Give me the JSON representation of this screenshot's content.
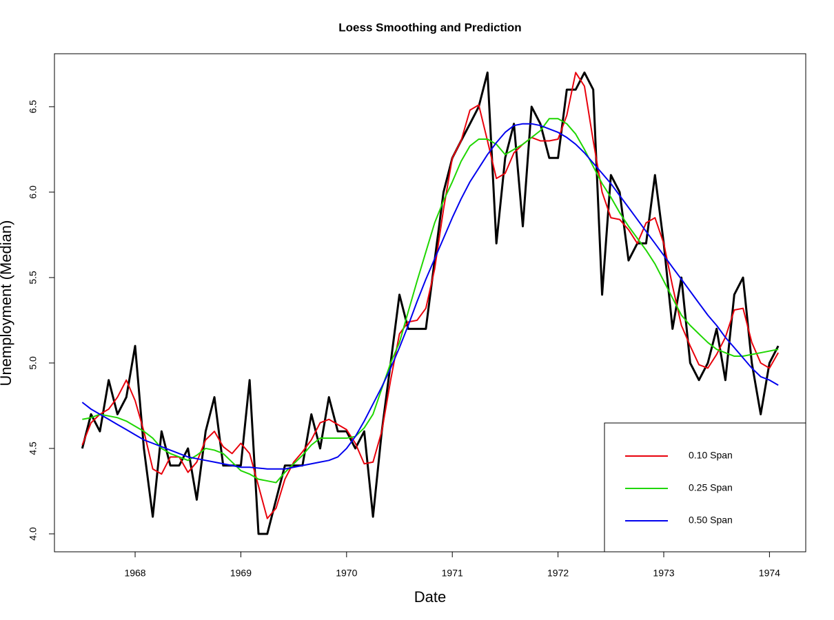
{
  "chart_data": {
    "type": "line",
    "title": "Loess Smoothing and Prediction",
    "x_label": "Date",
    "y_label": "Unemployment (Median)",
    "x": [
      1967.5,
      1967.583,
      1967.667,
      1967.75,
      1967.833,
      1967.917,
      1968,
      1968.083,
      1968.167,
      1968.25,
      1968.333,
      1968.417,
      1968.5,
      1968.583,
      1968.667,
      1968.75,
      1968.833,
      1968.917,
      1969,
      1969.083,
      1969.167,
      1969.25,
      1969.333,
      1969.417,
      1969.5,
      1969.583,
      1969.667,
      1969.75,
      1969.833,
      1969.917,
      1970,
      1970.083,
      1970.167,
      1970.25,
      1970.333,
      1970.417,
      1970.5,
      1970.583,
      1970.667,
      1970.75,
      1970.833,
      1970.917,
      1971,
      1971.083,
      1971.167,
      1971.25,
      1971.333,
      1971.417,
      1971.5,
      1971.583,
      1971.667,
      1971.75,
      1971.833,
      1971.917,
      1972,
      1972.083,
      1972.167,
      1972.25,
      1972.333,
      1972.417,
      1972.5,
      1972.583,
      1972.667,
      1972.75,
      1972.833,
      1972.917,
      1973,
      1973.083,
      1973.167,
      1973.25,
      1973.333,
      1973.417,
      1973.5,
      1973.583,
      1973.667,
      1973.75,
      1973.833,
      1973.917,
      1974,
      1974.083
    ],
    "series": [
      {
        "color": "#000000",
        "width": 3,
        "values": [
          4.5,
          4.7,
          4.6,
          4.9,
          4.7,
          4.8,
          5.1,
          4.5,
          4.1,
          4.6,
          4.4,
          4.4,
          4.5,
          4.2,
          4.6,
          4.8,
          4.4,
          4.4,
          4.4,
          4.9,
          4.0,
          4.0,
          4.2,
          4.4,
          4.4,
          4.4,
          4.7,
          4.5,
          4.8,
          4.6,
          4.6,
          4.5,
          4.6,
          4.1,
          4.6,
          5.0,
          5.4,
          5.2,
          5.2,
          5.2,
          5.6,
          6.0,
          6.2,
          6.3,
          6.4,
          6.5,
          6.7,
          5.7,
          6.2,
          6.4,
          5.8,
          6.5,
          6.4,
          6.2,
          6.2,
          6.6,
          6.6,
          6.7,
          6.6,
          5.4,
          6.1,
          6.0,
          5.6,
          5.7,
          5.7,
          6.1,
          5.7,
          5.2,
          5.5,
          5.0,
          4.9,
          5.0,
          5.2,
          4.9,
          5.4,
          5.5,
          5.0,
          4.7,
          5.0,
          5.1
        ]
      },
      {
        "name": "0.10 Span",
        "color": "#e8000b",
        "width": 2,
        "values": [
          4.52,
          4.65,
          4.7,
          4.73,
          4.8,
          4.9,
          4.78,
          4.6,
          4.38,
          4.35,
          4.45,
          4.45,
          4.36,
          4.42,
          4.55,
          4.6,
          4.51,
          4.47,
          4.53,
          4.47,
          4.28,
          4.09,
          4.15,
          4.32,
          4.42,
          4.48,
          4.55,
          4.65,
          4.67,
          4.64,
          4.61,
          4.53,
          4.41,
          4.42,
          4.6,
          4.9,
          5.17,
          5.24,
          5.25,
          5.32,
          5.55,
          5.9,
          6.2,
          6.3,
          6.48,
          6.51,
          6.3,
          6.08,
          6.11,
          6.23,
          6.28,
          6.32,
          6.3,
          6.3,
          6.31,
          6.45,
          6.7,
          6.62,
          6.3,
          6.0,
          5.85,
          5.84,
          5.78,
          5.7,
          5.82,
          5.85,
          5.7,
          5.45,
          5.22,
          5.1,
          4.99,
          4.97,
          5.05,
          5.15,
          5.31,
          5.32,
          5.12,
          5.0,
          4.97,
          5.06
        ]
      },
      {
        "name": "0.25 Span",
        "color": "#1fd600",
        "width": 2,
        "values": [
          4.67,
          4.68,
          4.7,
          4.69,
          4.68,
          4.66,
          4.63,
          4.6,
          4.56,
          4.5,
          4.47,
          4.45,
          4.43,
          4.46,
          4.5,
          4.49,
          4.47,
          4.42,
          4.37,
          4.35,
          4.32,
          4.31,
          4.3,
          4.36,
          4.41,
          4.46,
          4.52,
          4.56,
          4.56,
          4.56,
          4.56,
          4.57,
          4.62,
          4.7,
          4.85,
          5.0,
          5.12,
          5.3,
          5.48,
          5.65,
          5.82,
          5.95,
          6.06,
          6.18,
          6.27,
          6.31,
          6.31,
          6.28,
          6.22,
          6.25,
          6.28,
          6.32,
          6.36,
          6.43,
          6.43,
          6.4,
          6.34,
          6.25,
          6.15,
          6.05,
          5.97,
          5.88,
          5.8,
          5.73,
          5.66,
          5.58,
          5.48,
          5.38,
          5.28,
          5.22,
          5.17,
          5.12,
          5.08,
          5.06,
          5.04,
          5.04,
          5.05,
          5.06,
          5.07,
          5.08
        ]
      },
      {
        "name": "0.50 Span",
        "color": "#0000ee",
        "width": 2,
        "values": [
          4.77,
          4.73,
          4.7,
          4.67,
          4.64,
          4.61,
          4.58,
          4.55,
          4.53,
          4.51,
          4.49,
          4.47,
          4.45,
          4.44,
          4.43,
          4.42,
          4.41,
          4.4,
          4.39,
          4.39,
          4.385,
          4.38,
          4.38,
          4.38,
          4.39,
          4.4,
          4.41,
          4.42,
          4.43,
          4.45,
          4.5,
          4.57,
          4.66,
          4.76,
          4.86,
          4.97,
          5.09,
          5.22,
          5.36,
          5.49,
          5.61,
          5.73,
          5.85,
          5.96,
          6.06,
          6.14,
          6.22,
          6.29,
          6.35,
          6.39,
          6.4,
          6.4,
          6.39,
          6.37,
          6.35,
          6.32,
          6.28,
          6.23,
          6.17,
          6.11,
          6.05,
          5.98,
          5.91,
          5.84,
          5.77,
          5.7,
          5.63,
          5.56,
          5.49,
          5.42,
          5.35,
          5.28,
          5.22,
          5.15,
          5.09,
          5.03,
          4.97,
          4.92,
          4.9,
          4.87
        ]
      }
    ],
    "xlim": [
      1967.237,
      1974.343
    ],
    "xticks": [
      1968,
      1969,
      1970,
      1971,
      1972,
      1973,
      1974
    ],
    "ylim": [
      3.895,
      6.81
    ],
    "yticks": [
      {
        "value": 4,
        "label": "4.0"
      },
      4.5,
      {
        "value": 5,
        "label": "5.0"
      },
      5.5,
      {
        "value": 6,
        "label": "6.0"
      },
      6.5
    ],
    "grid": false,
    "legend": "bottom-right"
  }
}
